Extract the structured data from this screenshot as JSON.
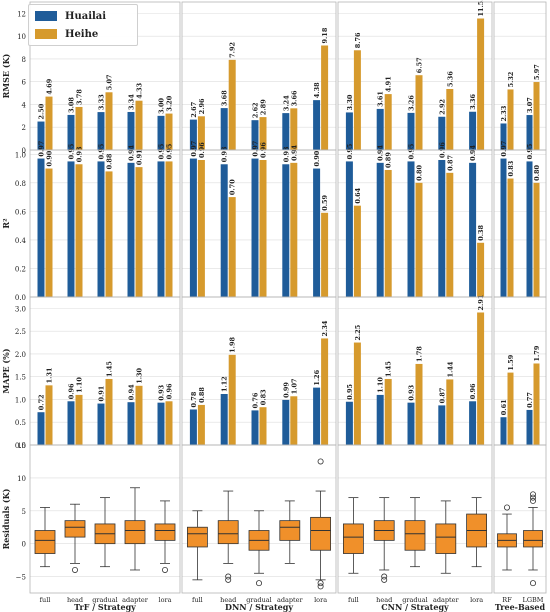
{
  "colors": {
    "huailai": "#1f5c99",
    "heihe": "#d69a2d",
    "box": "#f0902a",
    "grid": "#dddddd"
  },
  "legend": [
    {
      "name": "Huailai",
      "color": "#1f5c99"
    },
    {
      "name": "Heihe",
      "color": "#d69a2d"
    }
  ],
  "chart_data": {
    "type": "bar",
    "groups": [
      {
        "xlabel": "TrF / Strategy",
        "categories": [
          "full",
          "head",
          "gradual",
          "adapter",
          "lora"
        ]
      },
      {
        "xlabel": "DNN / Strategy",
        "categories": [
          "full",
          "head",
          "gradual",
          "adapter",
          "lora"
        ]
      },
      {
        "xlabel": "CNN / Strategy",
        "categories": [
          "full",
          "head",
          "gradual",
          "adapter",
          "lora"
        ]
      },
      {
        "xlabel": "Tree-Based",
        "categories": [
          "RF",
          "LGBM"
        ]
      }
    ],
    "series_names": [
      "Huailai",
      "Heihe"
    ],
    "rows": [
      {
        "metric": "rmse",
        "ylabel": "RMSE (K)",
        "ylim": [
          0,
          13
        ],
        "yticks": [
          "0",
          "2",
          "4",
          "6",
          "8",
          "10",
          "12"
        ],
        "tickvals": [
          0,
          2,
          4,
          6,
          8,
          10,
          12
        ],
        "huailai": [
          [
            2.5,
            3.08,
            3.33,
            3.34,
            3.0
          ],
          [
            2.67,
            3.68,
            2.62,
            3.24,
            4.38
          ],
          [
            3.3,
            3.61,
            3.26,
            2.92,
            3.36
          ],
          [
            2.33,
            3.07
          ]
        ],
        "heihe": [
          [
            4.69,
            3.78,
            5.07,
            4.33,
            3.2
          ],
          [
            2.96,
            7.92,
            2.89,
            3.66,
            9.18
          ],
          [
            8.76,
            4.91,
            6.57,
            5.36,
            11.55
          ],
          [
            5.32,
            5.97
          ]
        ],
        "labels_huailai": [
          [
            "2.50",
            "3.08",
            "3.33",
            "3.34",
            "3.00"
          ],
          [
            "2.67",
            "3.68",
            "2.62",
            "3.24",
            "4.38"
          ],
          [
            "3.30",
            "3.61",
            "3.26",
            "2.92",
            "3.36"
          ],
          [
            "2.33",
            "3.07"
          ]
        ],
        "labels_heihe": [
          [
            "4.69",
            "3.78",
            "5.07",
            "4.33",
            "3.20"
          ],
          [
            "2.96",
            "7.92",
            "2.89",
            "3.66",
            "9.18"
          ],
          [
            "8.76",
            "4.91",
            "6.57",
            "5.36",
            "11.55"
          ],
          [
            "5.32",
            "5.97"
          ]
        ]
      },
      {
        "metric": "r2",
        "ylabel": "R²",
        "ylim": [
          0,
          1.03
        ],
        "yticks": [
          "0.0",
          "0.2",
          "0.4",
          "0.6",
          "0.8",
          "1.0"
        ],
        "tickvals": [
          0,
          0.2,
          0.4,
          0.6,
          0.8,
          1.0
        ],
        "huailai": [
          [
            0.97,
            0.95,
            0.95,
            0.94,
            0.95
          ],
          [
            0.97,
            0.93,
            0.97,
            0.93,
            0.9
          ],
          [
            0.95,
            0.94,
            0.95,
            0.96,
            0.94
          ],
          [
            0.97,
            0.95
          ]
        ],
        "heihe": [
          [
            0.9,
            0.93,
            0.88,
            0.91,
            0.95
          ],
          [
            0.96,
            0.7,
            0.96,
            0.94,
            0.59
          ],
          [
            0.64,
            0.89,
            0.8,
            0.87,
            0.38
          ],
          [
            0.83,
            0.8
          ]
        ],
        "labels_huailai": [
          [
            "0.97",
            "0.95",
            "0.95",
            "0.94",
            "0.95"
          ],
          [
            "0.97",
            "0.93",
            "0.97",
            "0.93",
            "0.90"
          ],
          [
            "0.95",
            "0.94",
            "0.95",
            "0.96",
            "0.94"
          ],
          [
            "0.97",
            "0.95"
          ]
        ],
        "labels_heihe": [
          [
            "0.90",
            "0.93",
            "0.88",
            "0.91",
            "0.95"
          ],
          [
            "0.96",
            "0.70",
            "0.96",
            "0.94",
            "0.59"
          ],
          [
            "0.64",
            "0.89",
            "0.80",
            "0.87",
            "0.38"
          ],
          [
            "0.83",
            "0.80"
          ]
        ]
      },
      {
        "metric": "mape",
        "ylabel": "MAPE (%)",
        "ylim": [
          0,
          3.25
        ],
        "yticks": [
          "0.0",
          "0.5",
          "1.0",
          "1.5",
          "2.0",
          "2.5",
          "3.0"
        ],
        "tickvals": [
          0,
          0.5,
          1.0,
          1.5,
          2.0,
          2.5,
          3.0
        ],
        "huailai": [
          [
            0.72,
            0.96,
            0.91,
            0.94,
            0.93
          ],
          [
            0.78,
            1.12,
            0.76,
            0.99,
            1.26
          ],
          [
            0.95,
            1.1,
            0.93,
            0.87,
            0.96
          ],
          [
            0.61,
            0.77
          ]
        ],
        "heihe": [
          [
            1.31,
            1.1,
            1.45,
            1.3,
            0.96
          ],
          [
            0.88,
            1.98,
            0.83,
            1.07,
            2.34
          ],
          [
            2.25,
            1.45,
            1.78,
            1.44,
            2.91
          ],
          [
            1.59,
            1.79
          ]
        ],
        "labels_huailai": [
          [
            "0.72",
            "0.96",
            "0.91",
            "0.94",
            "0.93"
          ],
          [
            "0.78",
            "1.12",
            "0.76",
            "0.99",
            "1.26"
          ],
          [
            "0.95",
            "1.10",
            "0.93",
            "0.87",
            "0.96"
          ],
          [
            "0.61",
            "0.77"
          ]
        ],
        "labels_heihe": [
          [
            "1.31",
            "1.10",
            "1.45",
            "1.30",
            "0.96"
          ],
          [
            "0.88",
            "1.98",
            "0.83",
            "1.07",
            "2.34"
          ],
          [
            "2.25",
            "1.45",
            "1.78",
            "1.44",
            "2.91"
          ],
          [
            "1.59",
            "1.79"
          ]
        ]
      }
    ],
    "residuals": {
      "type": "box",
      "ylabel": "Residuals (K)",
      "ylim": [
        -7.5,
        15
      ],
      "yticks": [
        "−5",
        "0",
        "5",
        "10",
        "15"
      ],
      "tickvals": [
        -5,
        0,
        5,
        10,
        15
      ],
      "boxes": [
        [
          {
            "lo": -3.5,
            "q1": -1.5,
            "med": 0.5,
            "q3": 2.0,
            "hi": 5.5,
            "out": []
          },
          {
            "lo": -3.0,
            "q1": 1.0,
            "med": 2.5,
            "q3": 3.5,
            "hi": 6.0,
            "out": [
              -4.0
            ]
          },
          {
            "lo": -3.5,
            "q1": 0.0,
            "med": 1.5,
            "q3": 3.0,
            "hi": 7.0,
            "out": []
          },
          {
            "lo": -4.0,
            "q1": 0.0,
            "med": 2.0,
            "q3": 3.5,
            "hi": 8.5,
            "out": []
          },
          {
            "lo": -3.0,
            "q1": 0.5,
            "med": 2.0,
            "q3": 3.0,
            "hi": 6.5,
            "out": [
              -4.0
            ]
          }
        ],
        [
          {
            "lo": -5.5,
            "q1": -0.5,
            "med": 1.5,
            "q3": 2.5,
            "hi": 5.0,
            "out": []
          },
          {
            "lo": -3.0,
            "q1": 0.0,
            "med": 1.5,
            "q3": 3.5,
            "hi": 8.0,
            "out": [
              -5.5,
              -5.0
            ]
          },
          {
            "lo": -4.5,
            "q1": -1.0,
            "med": 0.5,
            "q3": 2.0,
            "hi": 5.0,
            "out": [
              -6.0
            ]
          },
          {
            "lo": -3.0,
            "q1": 0.5,
            "med": 2.5,
            "q3": 3.5,
            "hi": 6.5,
            "out": []
          },
          {
            "lo": -5.5,
            "q1": -1.0,
            "med": 2.0,
            "q3": 4.0,
            "hi": 8.0,
            "out": [
              12.5,
              -6.5,
              -6.0
            ]
          }
        ],
        [
          {
            "lo": -4.5,
            "q1": -1.5,
            "med": 1.0,
            "q3": 3.0,
            "hi": 7.0,
            "out": []
          },
          {
            "lo": -4.0,
            "q1": 0.5,
            "med": 2.0,
            "q3": 3.5,
            "hi": 7.0,
            "out": [
              -5.5,
              -5.0
            ]
          },
          {
            "lo": -3.5,
            "q1": -1.0,
            "med": 1.5,
            "q3": 3.5,
            "hi": 7.0,
            "out": []
          },
          {
            "lo": -4.5,
            "q1": -1.5,
            "med": 1.0,
            "q3": 3.0,
            "hi": 6.5,
            "out": []
          },
          {
            "lo": -3.5,
            "q1": -0.5,
            "med": 2.0,
            "q3": 4.5,
            "hi": 7.0,
            "out": []
          }
        ],
        [
          {
            "lo": -4.0,
            "q1": -0.5,
            "med": 0.5,
            "q3": 1.5,
            "hi": 4.5,
            "out": [
              5.5
            ]
          },
          {
            "lo": -4.0,
            "q1": -0.5,
            "med": 0.5,
            "q3": 2.0,
            "hi": 5.5,
            "out": [
              7.5,
              7.0,
              6.5,
              -6.0
            ]
          }
        ]
      ]
    }
  }
}
